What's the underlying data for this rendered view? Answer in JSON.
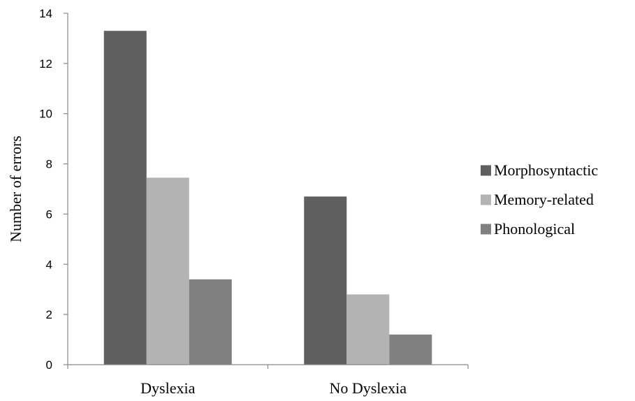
{
  "chart_data": {
    "type": "bar",
    "title": "",
    "xlabel": "",
    "ylabel": "Number of errors",
    "ylim": [
      0,
      14
    ],
    "yticks": [
      0,
      2,
      4,
      6,
      8,
      10,
      12,
      14
    ],
    "grid": false,
    "legend_position": "right",
    "categories": [
      "Dyslexia",
      "No Dyslexia"
    ],
    "series": [
      {
        "name": "Morphosyntactic",
        "values": [
          13.3,
          6.7
        ],
        "color": "#5f5f5f"
      },
      {
        "name": "Memory-related",
        "values": [
          7.45,
          2.8
        ],
        "color": "#b3b3b3"
      },
      {
        "name": "Phonological",
        "values": [
          3.4,
          1.2
        ],
        "color": "#808080"
      }
    ]
  }
}
